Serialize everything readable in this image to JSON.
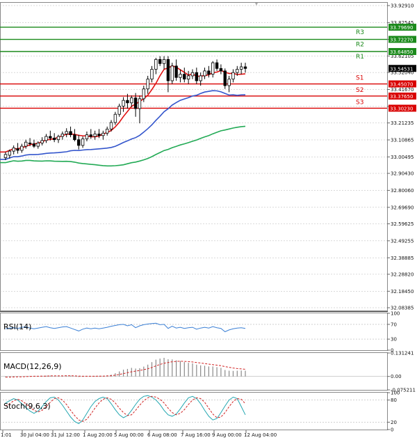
{
  "colors": {
    "candle": "#000000",
    "bull_fill": "#ffffff",
    "bear_fill": "#000000",
    "grid": "#b4b4b4",
    "resistance": "#1b8a1b",
    "support": "#d90000",
    "ma_fast": "#e01010",
    "ma_mid": "#3355cc",
    "ma_slow": "#22aa55",
    "price_badge": "#000000",
    "rsi_line": "#3a7fd5",
    "macd_hist": "#888888",
    "macd_signal": "#d02020",
    "stoch_main": "#22a6b0",
    "stoch_signal": "#d02020"
  },
  "chart_data": [
    {
      "type": "candlestick",
      "title": "",
      "ylim": [
        32.08385,
        33.9291
      ],
      "y_ticks": [
        33.9291,
        33.82545,
        33.7227,
        33.62105,
        33.5204,
        33.4167,
        33.31305,
        33.21235,
        33.10865,
        33.00495,
        32.9043,
        32.8006,
        32.6969,
        32.59625,
        32.49255,
        32.38885,
        32.2882,
        32.1845,
        32.08385
      ],
      "y_tick_labels": [
        "33.92910",
        "33.82545",
        "33.72270",
        "33.62105",
        "33.52040",
        "33.41670",
        "33.31305",
        "33.21235",
        "33.10865",
        "33.00495",
        "32.90430",
        "32.80060",
        "32.69690",
        "32.59625",
        "32.49255",
        "32.38885",
        "32.28820",
        "32.18450",
        "32.08385"
      ],
      "x_tick_labels": [
        "1:01",
        "30 Jul 04:00",
        "31 Jul 12:00",
        "1 Aug 20:00",
        "5 Aug 00:00",
        "6 Aug 08:00",
        "7 Aug 16:00",
        "9 Aug 00:00",
        "12 Aug 04:00"
      ],
      "current_price": 33.54531,
      "current_price_label": "33.54531",
      "levels": [
        {
          "name": "R3",
          "value": 33.7969,
          "label": "33.79690",
          "kind": "resistance"
        },
        {
          "name": "R2",
          "value": 33.7227,
          "label": "33.72270",
          "kind": "resistance"
        },
        {
          "name": "R1",
          "value": 33.6485,
          "label": "33.64850",
          "kind": "resistance"
        },
        {
          "name": "S1",
          "value": 33.4507,
          "label": "33.45070",
          "kind": "support"
        },
        {
          "name": "S2",
          "value": 33.3765,
          "label": "33.37650",
          "kind": "support"
        },
        {
          "name": "S3",
          "value": 33.3023,
          "label": "33.30230",
          "kind": "support"
        }
      ],
      "candles": [
        [
          33.0,
          33.035,
          32.985,
          33.02
        ],
        [
          33.015,
          33.05,
          32.995,
          33.04
        ],
        [
          33.04,
          33.075,
          33.02,
          33.06
        ],
        [
          33.055,
          33.09,
          33.025,
          33.045
        ],
        [
          33.045,
          33.085,
          33.03,
          33.07
        ],
        [
          33.07,
          33.11,
          33.055,
          33.095
        ],
        [
          33.09,
          33.12,
          33.07,
          33.085
        ],
        [
          33.085,
          33.11,
          33.06,
          33.07
        ],
        [
          33.07,
          33.1,
          33.055,
          33.09
        ],
        [
          33.09,
          33.125,
          33.075,
          33.105
        ],
        [
          33.105,
          33.145,
          33.09,
          33.13
        ],
        [
          33.13,
          33.165,
          33.105,
          33.12
        ],
        [
          33.12,
          33.15,
          33.095,
          33.11
        ],
        [
          33.11,
          33.14,
          33.09,
          33.13
        ],
        [
          33.13,
          33.16,
          33.11,
          33.145
        ],
        [
          33.145,
          33.18,
          33.125,
          33.16
        ],
        [
          33.16,
          33.19,
          33.125,
          33.14
        ],
        [
          33.14,
          33.175,
          33.1,
          33.11
        ],
        [
          33.11,
          33.14,
          33.05,
          33.075
        ],
        [
          33.075,
          33.13,
          33.06,
          33.115
        ],
        [
          33.115,
          33.16,
          33.1,
          33.14
        ],
        [
          33.14,
          33.175,
          33.115,
          33.13
        ],
        [
          33.13,
          33.165,
          33.11,
          33.145
        ],
        [
          33.145,
          33.175,
          33.12,
          33.135
        ],
        [
          33.135,
          33.165,
          33.11,
          33.15
        ],
        [
          33.15,
          33.19,
          33.135,
          33.175
        ],
        [
          33.175,
          33.23,
          33.16,
          33.215
        ],
        [
          33.215,
          33.28,
          33.2,
          33.265
        ],
        [
          33.265,
          33.33,
          33.25,
          33.315
        ],
        [
          33.315,
          33.37,
          33.28,
          33.35
        ],
        [
          33.35,
          33.39,
          33.3,
          33.335
        ],
        [
          33.335,
          33.38,
          33.31,
          33.365
        ],
        [
          33.365,
          33.395,
          33.25,
          33.3
        ],
        [
          33.3,
          33.38,
          33.21,
          33.36
        ],
        [
          33.36,
          33.44,
          33.34,
          33.42
        ],
        [
          33.42,
          33.5,
          33.39,
          33.48
        ],
        [
          33.48,
          33.56,
          33.46,
          33.54
        ],
        [
          33.54,
          33.61,
          33.51,
          33.6
        ],
        [
          33.6,
          33.62,
          33.56,
          33.575
        ],
        [
          33.575,
          33.62,
          33.54,
          33.6
        ],
        [
          33.6,
          33.62,
          33.4,
          33.47
        ],
        [
          33.47,
          33.58,
          33.45,
          33.56
        ],
        [
          33.56,
          33.6,
          33.47,
          33.49
        ],
        [
          33.49,
          33.54,
          33.46,
          33.51
        ],
        [
          33.51,
          33.55,
          33.46,
          33.48
        ],
        [
          33.48,
          33.53,
          33.45,
          33.5
        ],
        [
          33.5,
          33.54,
          33.48,
          33.52
        ],
        [
          33.52,
          33.55,
          33.45,
          33.47
        ],
        [
          33.47,
          33.52,
          33.44,
          33.5
        ],
        [
          33.5,
          33.55,
          33.48,
          33.53
        ],
        [
          33.53,
          33.56,
          33.49,
          33.51
        ],
        [
          33.51,
          33.59,
          33.49,
          33.58
        ],
        [
          33.58,
          33.6,
          33.53,
          33.545
        ],
        [
          33.545,
          33.57,
          33.51,
          33.53
        ],
        [
          33.53,
          33.545,
          33.42,
          33.44
        ],
        [
          33.44,
          33.5,
          33.4,
          33.48
        ],
        [
          33.48,
          33.54,
          33.46,
          33.52
        ],
        [
          33.52,
          33.56,
          33.5,
          33.54
        ],
        [
          33.54,
          33.58,
          33.51,
          33.555
        ],
        [
          33.555,
          33.58,
          33.52,
          33.545
        ]
      ],
      "moving_averages": [
        {
          "name": "fast",
          "start": 33.035,
          "end": 33.512
        },
        {
          "name": "mid",
          "start": 32.99,
          "end": 33.384
        },
        {
          "name": "slow",
          "start": 32.97,
          "end": 33.192
        }
      ]
    },
    {
      "type": "line",
      "title": "RSI(14)",
      "ylim": [
        0,
        100
      ],
      "y_ticks": [
        100,
        70,
        30,
        0
      ],
      "y_tick_labels": [
        "100",
        "70",
        "30",
        "0"
      ],
      "values": [
        58,
        60,
        61,
        59,
        62,
        63,
        60,
        58,
        60,
        62,
        64,
        61,
        59,
        61,
        63,
        64,
        60,
        56,
        52,
        57,
        60,
        58,
        60,
        58,
        60,
        62,
        65,
        67,
        69,
        70,
        66,
        69,
        61,
        66,
        69,
        71,
        72,
        73,
        69,
        70,
        59,
        65,
        60,
        62,
        59,
        61,
        62,
        57,
        60,
        62,
        60,
        64,
        61,
        59,
        50,
        55,
        58,
        60,
        61,
        59
      ]
    },
    {
      "type": "bar",
      "title": "MACD(12,26,9)",
      "ylim": [
        -0.075211,
        0.131241
      ],
      "y_ticks": [
        0.131241,
        0.0,
        -0.075211
      ],
      "y_tick_labels": [
        "0.131241",
        "0.00",
        "-0.075211"
      ],
      "values": [
        -0.005,
        -0.004,
        -0.002,
        -0.001,
        0.0,
        0.002,
        0.003,
        0.002,
        0.002,
        0.003,
        0.004,
        0.004,
        0.003,
        0.003,
        0.004,
        0.005,
        0.004,
        0.001,
        -0.003,
        -0.002,
        0.0,
        0.001,
        0.002,
        0.002,
        0.003,
        0.005,
        0.01,
        0.018,
        0.028,
        0.038,
        0.042,
        0.048,
        0.044,
        0.046,
        0.055,
        0.066,
        0.08,
        0.094,
        0.1,
        0.104,
        0.096,
        0.095,
        0.09,
        0.086,
        0.08,
        0.076,
        0.073,
        0.066,
        0.062,
        0.06,
        0.056,
        0.056,
        0.052,
        0.048,
        0.036,
        0.032,
        0.031,
        0.032,
        0.033,
        0.032
      ],
      "signal": [
        -0.004,
        -0.004,
        -0.003,
        -0.002,
        -0.002,
        -0.001,
        0.0,
        0.001,
        0.001,
        0.002,
        0.002,
        0.003,
        0.003,
        0.003,
        0.003,
        0.004,
        0.004,
        0.003,
        0.002,
        0.001,
        0.001,
        0.001,
        0.001,
        0.002,
        0.002,
        0.003,
        0.004,
        0.007,
        0.011,
        0.016,
        0.021,
        0.026,
        0.03,
        0.033,
        0.038,
        0.043,
        0.05,
        0.059,
        0.067,
        0.074,
        0.078,
        0.082,
        0.084,
        0.085,
        0.084,
        0.083,
        0.081,
        0.078,
        0.075,
        0.072,
        0.069,
        0.066,
        0.063,
        0.06,
        0.055,
        0.051,
        0.047,
        0.044,
        0.042,
        0.04
      ]
    },
    {
      "type": "line",
      "title": "Stoch(9,6,3)",
      "ylim": [
        0,
        100
      ],
      "y_ticks": [
        100,
        80,
        20,
        0
      ],
      "y_tick_labels": [
        "100",
        "80",
        "20",
        "0"
      ],
      "values": [
        72,
        78,
        84,
        80,
        70,
        60,
        50,
        44,
        50,
        62,
        76,
        86,
        88,
        80,
        66,
        50,
        34,
        22,
        16,
        26,
        44,
        62,
        76,
        84,
        88,
        84,
        70,
        54,
        40,
        32,
        38,
        52,
        68,
        82,
        90,
        92,
        88,
        80,
        68,
        52,
        40,
        36,
        42,
        56,
        72,
        86,
        90,
        84,
        70,
        52,
        36,
        26,
        30,
        46,
        64,
        80,
        88,
        84,
        62,
        40
      ],
      "signal": [
        64,
        70,
        78,
        82,
        78,
        70,
        60,
        52,
        48,
        52,
        62,
        74,
        84,
        86,
        80,
        68,
        52,
        38,
        26,
        22,
        28,
        42,
        58,
        72,
        82,
        86,
        82,
        72,
        58,
        46,
        38,
        40,
        52,
        66,
        78,
        86,
        90,
        88,
        82,
        72,
        58,
        46,
        40,
        44,
        54,
        68,
        80,
        86,
        84,
        74,
        58,
        42,
        32,
        34,
        46,
        62,
        76,
        84,
        82,
        70
      ]
    }
  ]
}
